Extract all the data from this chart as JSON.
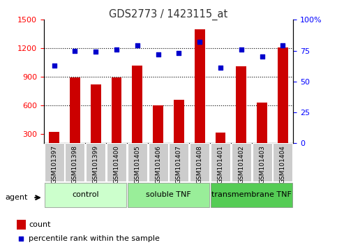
{
  "title": "GDS2773 / 1423115_at",
  "samples": [
    "GSM101397",
    "GSM101398",
    "GSM101399",
    "GSM101400",
    "GSM101405",
    "GSM101406",
    "GSM101407",
    "GSM101408",
    "GSM101401",
    "GSM101402",
    "GSM101403",
    "GSM101404"
  ],
  "counts": [
    320,
    890,
    820,
    895,
    1020,
    600,
    660,
    1400,
    315,
    1010,
    625,
    1210
  ],
  "percentiles": [
    63,
    75,
    74,
    76,
    79,
    72,
    73,
    82,
    61,
    76,
    70,
    79
  ],
  "ylim_left": [
    200,
    1500
  ],
  "ylim_right": [
    0,
    100
  ],
  "yticks_left": [
    300,
    600,
    900,
    1200,
    1500
  ],
  "yticks_right": [
    0,
    25,
    50,
    75,
    100
  ],
  "group_styles": [
    {
      "label": "control",
      "start": 0,
      "end": 3,
      "color": "#ccffcc"
    },
    {
      "label": "soluble TNF",
      "start": 4,
      "end": 7,
      "color": "#99ee99"
    },
    {
      "label": "transmembrane TNF",
      "start": 8,
      "end": 11,
      "color": "#55cc55"
    }
  ],
  "bar_color": "#cc0000",
  "dot_color": "#0000cc",
  "agent_label": "agent",
  "legend_count": "count",
  "legend_pct": "percentile rank within the sample",
  "title_color": "#333333",
  "grid_yticks": [
    600,
    900,
    1200
  ]
}
